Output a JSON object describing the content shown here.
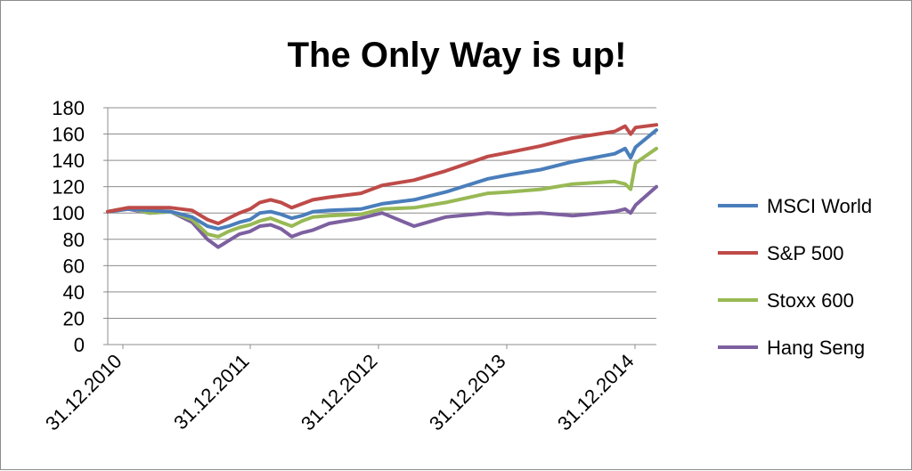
{
  "chart_data": {
    "type": "line",
    "title": "The Only Way is up!",
    "xlabel": "",
    "ylabel": "",
    "ylim": [
      0,
      180
    ],
    "yticks": [
      "0",
      "20",
      "40",
      "60",
      "80",
      "100",
      "120",
      "140",
      "160",
      "180"
    ],
    "x_tick_labels": [
      "31.12.2010",
      "31.12.2011",
      "31.12.2012",
      "31.12.2013",
      "31.12.2014"
    ],
    "x_range": [
      "2010-01-01",
      "2014-04-30"
    ],
    "grid": "horizontal",
    "legend_position": "right",
    "series": [
      {
        "name": "MSCI World",
        "color": "#4a7ebb",
        "points": [
          [
            "2010-01-01",
            101
          ],
          [
            "2010-03-01",
            103
          ],
          [
            "2010-05-01",
            102
          ],
          [
            "2010-07-01",
            101
          ],
          [
            "2010-09-01",
            97
          ],
          [
            "2010-10-15",
            90
          ],
          [
            "2010-11-15",
            88
          ],
          [
            "2010-12-15",
            90
          ],
          [
            "2011-01-15",
            93
          ],
          [
            "2011-02-15",
            95
          ],
          [
            "2011-03-15",
            100
          ],
          [
            "2011-04-15",
            101
          ],
          [
            "2011-05-15",
            99
          ],
          [
            "2011-06-15",
            96
          ],
          [
            "2011-07-15",
            98
          ],
          [
            "2011-08-15",
            101
          ],
          [
            "2011-10-01",
            102
          ],
          [
            "2011-12-31",
            103
          ],
          [
            "2012-03-01",
            107
          ],
          [
            "2012-06-01",
            110
          ],
          [
            "2012-09-01",
            116
          ],
          [
            "2012-12-31",
            126
          ],
          [
            "2013-03-01",
            129
          ],
          [
            "2013-06-01",
            133
          ],
          [
            "2013-09-01",
            139
          ],
          [
            "2013-12-31",
            145
          ],
          [
            "2014-01-30",
            149
          ],
          [
            "2014-02-15",
            142
          ],
          [
            "2014-03-01",
            150
          ],
          [
            "2014-04-30",
            163
          ]
        ]
      },
      {
        "name": "S&P 500",
        "color": "#be4b48",
        "points": [
          [
            "2010-01-01",
            101
          ],
          [
            "2010-03-01",
            104
          ],
          [
            "2010-05-01",
            104
          ],
          [
            "2010-07-01",
            104
          ],
          [
            "2010-09-01",
            102
          ],
          [
            "2010-10-15",
            95
          ],
          [
            "2010-11-15",
            92
          ],
          [
            "2010-12-15",
            96
          ],
          [
            "2011-01-15",
            100
          ],
          [
            "2011-02-15",
            103
          ],
          [
            "2011-03-15",
            108
          ],
          [
            "2011-04-15",
            110
          ],
          [
            "2011-05-15",
            108
          ],
          [
            "2011-06-15",
            104
          ],
          [
            "2011-07-15",
            107
          ],
          [
            "2011-08-15",
            110
          ],
          [
            "2011-10-01",
            112
          ],
          [
            "2011-12-31",
            115
          ],
          [
            "2012-03-01",
            121
          ],
          [
            "2012-06-01",
            125
          ],
          [
            "2012-09-01",
            132
          ],
          [
            "2012-12-31",
            143
          ],
          [
            "2013-03-01",
            146
          ],
          [
            "2013-06-01",
            151
          ],
          [
            "2013-09-01",
            157
          ],
          [
            "2013-12-31",
            162
          ],
          [
            "2014-01-30",
            166
          ],
          [
            "2014-02-15",
            160
          ],
          [
            "2014-03-01",
            165
          ],
          [
            "2014-04-30",
            167
          ]
        ]
      },
      {
        "name": "Stoxx 600",
        "color": "#98b954",
        "points": [
          [
            "2010-01-01",
            101
          ],
          [
            "2010-03-01",
            104
          ],
          [
            "2010-05-01",
            100
          ],
          [
            "2010-07-01",
            101
          ],
          [
            "2010-09-01",
            95
          ],
          [
            "2010-10-15",
            84
          ],
          [
            "2010-11-15",
            82
          ],
          [
            "2010-12-15",
            86
          ],
          [
            "2011-01-15",
            89
          ],
          [
            "2011-02-15",
            91
          ],
          [
            "2011-03-15",
            94
          ],
          [
            "2011-04-15",
            96
          ],
          [
            "2011-05-15",
            93
          ],
          [
            "2011-06-15",
            90
          ],
          [
            "2011-07-15",
            94
          ],
          [
            "2011-08-15",
            97
          ],
          [
            "2011-10-01",
            98
          ],
          [
            "2011-12-31",
            99
          ],
          [
            "2012-03-01",
            103
          ],
          [
            "2012-06-01",
            104
          ],
          [
            "2012-09-01",
            108
          ],
          [
            "2012-12-31",
            115
          ],
          [
            "2013-03-01",
            116
          ],
          [
            "2013-06-01",
            118
          ],
          [
            "2013-09-01",
            122
          ],
          [
            "2013-12-31",
            124
          ],
          [
            "2014-01-30",
            122
          ],
          [
            "2014-02-15",
            118
          ],
          [
            "2014-03-01",
            138
          ],
          [
            "2014-04-30",
            149
          ]
        ]
      },
      {
        "name": "Hang Seng",
        "color": "#7d60a0",
        "points": [
          [
            "2010-01-01",
            101
          ],
          [
            "2010-03-01",
            103
          ],
          [
            "2010-05-01",
            100
          ],
          [
            "2010-07-01",
            101
          ],
          [
            "2010-09-01",
            93
          ],
          [
            "2010-10-15",
            80
          ],
          [
            "2010-11-15",
            74
          ],
          [
            "2010-12-15",
            79
          ],
          [
            "2011-01-15",
            84
          ],
          [
            "2011-02-15",
            86
          ],
          [
            "2011-03-15",
            90
          ],
          [
            "2011-04-15",
            91
          ],
          [
            "2011-05-15",
            88
          ],
          [
            "2011-06-15",
            82
          ],
          [
            "2011-07-15",
            85
          ],
          [
            "2011-08-15",
            87
          ],
          [
            "2011-10-01",
            92
          ],
          [
            "2011-12-31",
            96
          ],
          [
            "2012-03-01",
            100
          ],
          [
            "2012-06-01",
            90
          ],
          [
            "2012-09-01",
            97
          ],
          [
            "2012-12-31",
            100
          ],
          [
            "2013-03-01",
            99
          ],
          [
            "2013-06-01",
            100
          ],
          [
            "2013-09-01",
            98
          ],
          [
            "2013-12-31",
            101
          ],
          [
            "2014-01-30",
            103
          ],
          [
            "2014-02-15",
            100
          ],
          [
            "2014-03-01",
            106
          ],
          [
            "2014-04-30",
            120
          ]
        ]
      }
    ]
  }
}
